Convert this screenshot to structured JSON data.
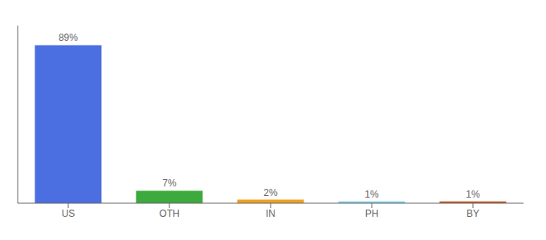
{
  "chart_data": {
    "type": "bar",
    "categories": [
      "US",
      "OTH",
      "IN",
      "PH",
      "BY"
    ],
    "values": [
      89,
      7,
      2,
      1,
      1
    ],
    "value_labels": [
      "89%",
      "7%",
      "2%",
      "1%",
      "1%"
    ],
    "colors": [
      "#4b6fe0",
      "#3daa3d",
      "#f0a020",
      "#7ecef0",
      "#c85820"
    ],
    "ylim": [
      0,
      100
    ],
    "data_labels": true,
    "tick_labels": "x",
    "grid": false
  }
}
